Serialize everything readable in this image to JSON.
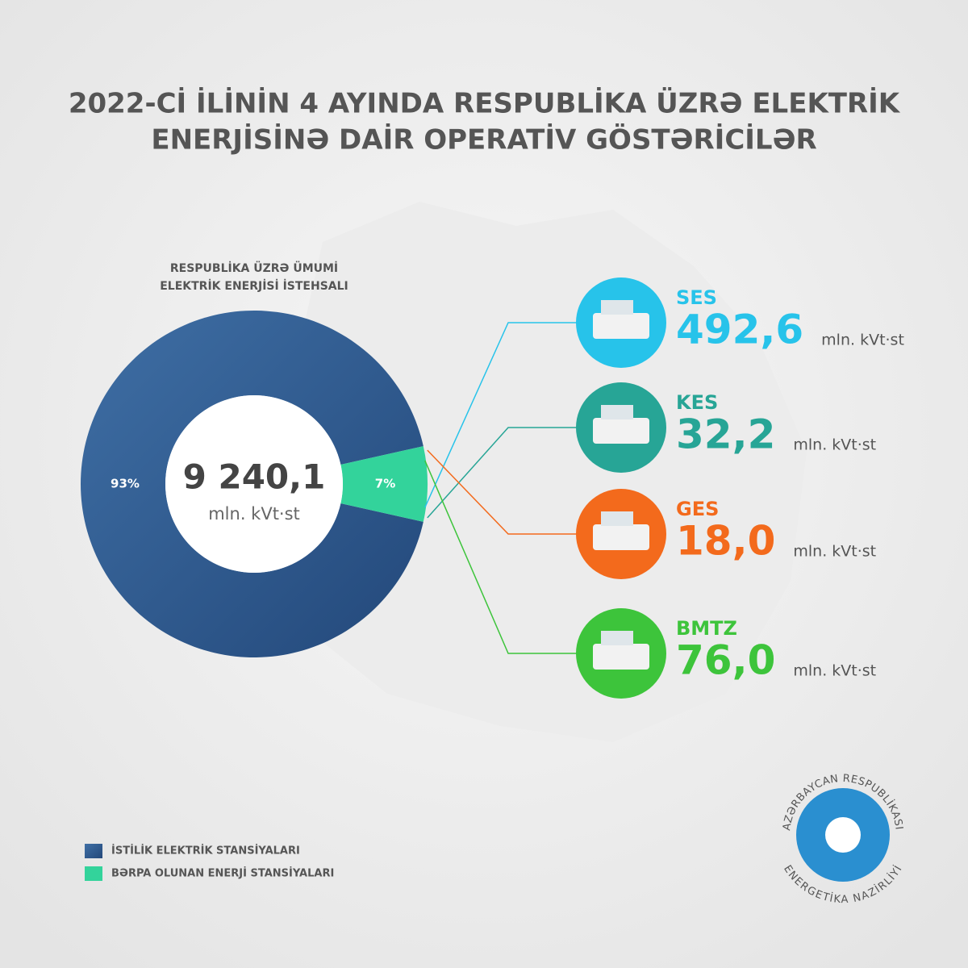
{
  "chart_data": {
    "type": "pie",
    "title": [
      "2022-Cİ İLİNİN 4 AYINDA RESPUBLİKA ÜZRƏ ELEKTRİK",
      "ENERJİSİNƏ DAİR OPERATİV GÖSTƏRİCİLƏR"
    ],
    "subtitle": [
      "RESPUBLİKA ÜZRƏ ÜMUMİ",
      "ELEKTRİK ENERJİSİ İSTEHSALI"
    ],
    "categories": [
      "İSTİLİK ELEKTRİK STANSİYALARI",
      "BƏRPA OLUNAN ENERJİ STANSİYALARI"
    ],
    "values": [
      93,
      7
    ],
    "value_labels": [
      "93%",
      "7%"
    ],
    "colors": [
      "#2f5c93",
      "#33d39b"
    ],
    "total": 9240.1,
    "total_label": "9 240,1",
    "unit": "mln. kVt·st",
    "breakdown": [
      {
        "name": "SES",
        "value": 492.6,
        "label": "492,6",
        "color": "#27c3ea"
      },
      {
        "name": "KES",
        "value": 32.2,
        "label": "32,2",
        "color": "#27a596"
      },
      {
        "name": "GES",
        "value": 18.0,
        "label": "18,0",
        "color": "#f36a1c"
      },
      {
        "name": "BMTZ",
        "value": 76.0,
        "label": "76,0",
        "color": "#3dc43b"
      }
    ],
    "logo_text": [
      "AZƏRBAYCAN RESPUBLİKASI",
      "ENERGETİKA NAZİRLİYİ"
    ]
  }
}
